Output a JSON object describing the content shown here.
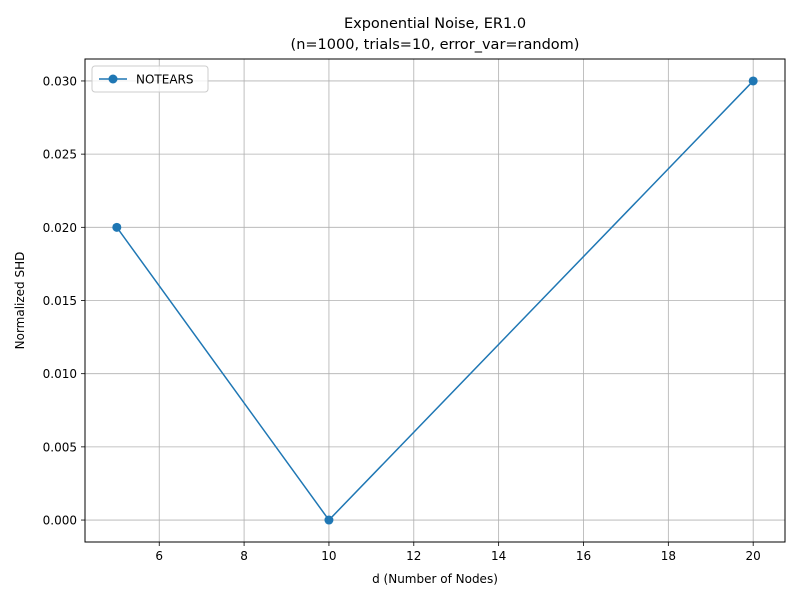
{
  "colors": {
    "series": "#1f77b4",
    "grid": "#b0b0b0",
    "axis": "#000000",
    "background": "#ffffff"
  },
  "chart_data": {
    "type": "line",
    "title": "Exponential Noise, ER1.0",
    "subtitle": "(n=1000, trials=10, error_var=random)",
    "xlabel": "d (Number of Nodes)",
    "ylabel": "Normalized SHD",
    "xlim": [
      4.25,
      20.75
    ],
    "ylim": [
      -0.0015,
      0.0315
    ],
    "x_ticks": [
      6,
      8,
      10,
      12,
      14,
      16,
      18,
      20
    ],
    "x_tick_labels": [
      "6",
      "8",
      "10",
      "12",
      "14",
      "16",
      "18",
      "20"
    ],
    "y_ticks": [
      0.0,
      0.005,
      0.01,
      0.015,
      0.02,
      0.025,
      0.03
    ],
    "y_tick_labels": [
      "0.000",
      "0.005",
      "0.010",
      "0.015",
      "0.020",
      "0.025",
      "0.030"
    ],
    "grid": true,
    "legend_position": "upper-left",
    "marker": "circle",
    "series": [
      {
        "name": "NOTEARS",
        "x": [
          5,
          10,
          20
        ],
        "y": [
          0.02,
          0.0,
          0.03
        ]
      }
    ]
  }
}
